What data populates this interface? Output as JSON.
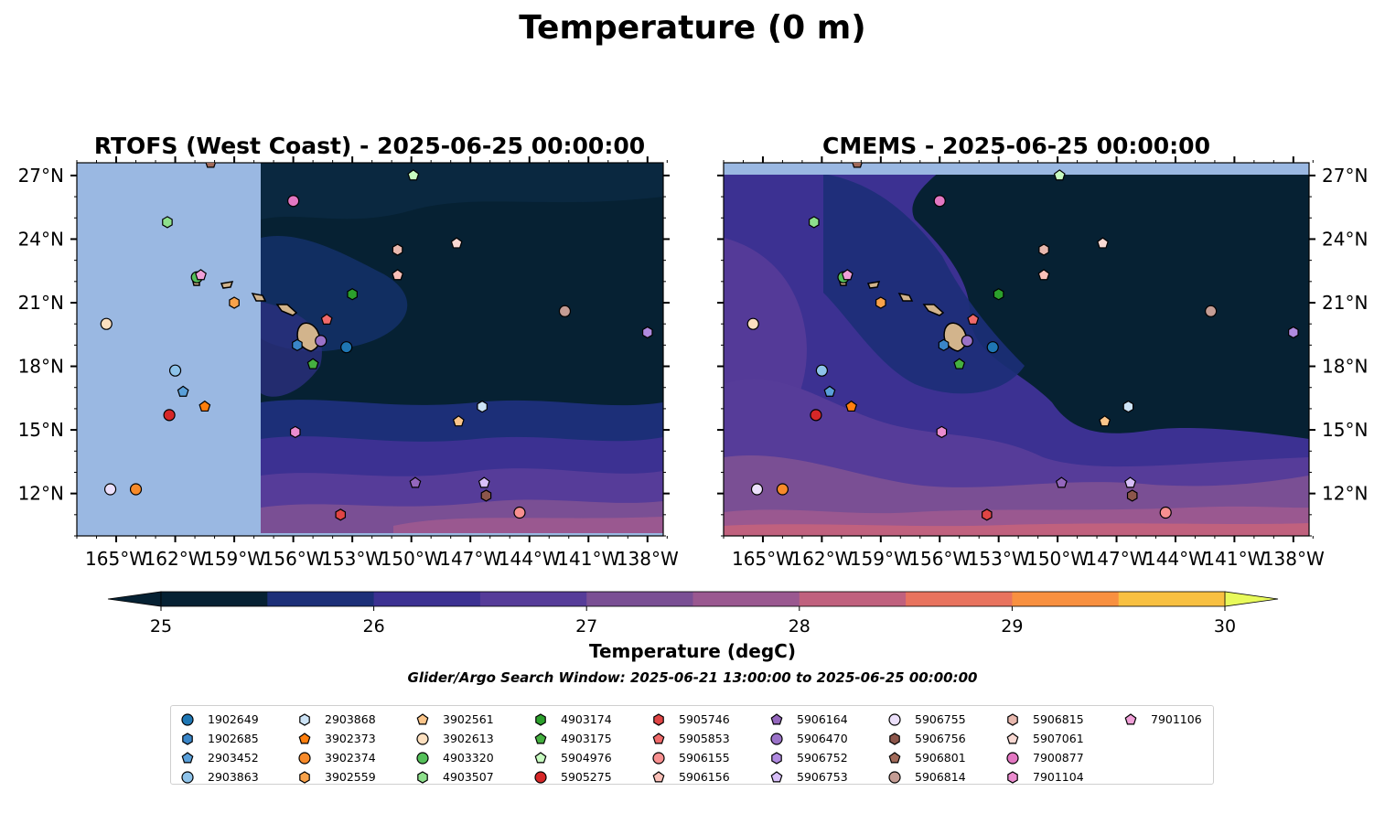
{
  "figure": {
    "suptitle": "Temperature (0 m)",
    "colorbar_label": "Temperature (degC)",
    "search_window": "Glider/Argo Search Window: 2025-06-21 13:00:00 to 2025-06-25 00:00:00"
  },
  "colors": {
    "land": "#d2b48c",
    "no_data": "#9ab8e2",
    "levels": [
      "#062133",
      "#1c2f78",
      "#3c3192",
      "#563c99",
      "#7a4f94",
      "#9a5890",
      "#c0617e",
      "#e8735e",
      "#f89040",
      "#f8c041",
      "#e8fa5b"
    ]
  },
  "chart_data": [
    {
      "type": "heatmap",
      "title": "RTOFS (West Coast) - 2025-06-25 00:00:00",
      "xlim": [
        -167,
        -137.2
      ],
      "ylim": [
        10,
        27.6
      ],
      "x_ticks": [
        "165°W",
        "162°W",
        "159°W",
        "156°W",
        "153°W",
        "150°W",
        "147°W",
        "144°W",
        "141°W",
        "138°W"
      ],
      "y_ticks": [
        "12°N",
        "15°N",
        "18°N",
        "21°N",
        "24°N",
        "27°N"
      ],
      "y_tick_side": "left",
      "no_data_west_of_lon": -157.6
    },
    {
      "type": "heatmap",
      "title": "CMEMS - 2025-06-25 00:00:00",
      "xlim": [
        -167,
        -137.2
      ],
      "ylim": [
        10,
        27.6
      ],
      "x_ticks": [
        "165°W",
        "162°W",
        "159°W",
        "156°W",
        "153°W",
        "150°W",
        "147°W",
        "144°W",
        "141°W",
        "138°W"
      ],
      "y_ticks": [
        "12°N",
        "15°N",
        "18°N",
        "21°N",
        "24°N",
        "27°N"
      ],
      "y_tick_side": "right",
      "no_data_north_of_lat": 27.1
    },
    {
      "type": "colorbar",
      "levels": [
        24.5,
        25,
        25.5,
        26,
        26.5,
        27,
        27.5,
        28,
        28.5,
        29,
        29.5,
        30,
        30.5
      ],
      "tick_labels": [
        "25",
        "26",
        "27",
        "28",
        "29",
        "30"
      ],
      "extend": "both",
      "label": "Temperature (degC)"
    }
  ],
  "floats": [
    {
      "id": "1902649",
      "lon": -153.3,
      "lat": 18.9,
      "color": "#1f77b4",
      "marker": "circle"
    },
    {
      "id": "1902685",
      "lon": -155.8,
      "lat": 19.0,
      "color": "#3a86c8",
      "marker": "hexagon"
    },
    {
      "id": "2903452",
      "lon": -161.6,
      "lat": 16.8,
      "color": "#5aa0da",
      "marker": "pentagon"
    },
    {
      "id": "2903863",
      "lon": -162.0,
      "lat": 17.8,
      "color": "#8ec3ea",
      "marker": "circle"
    },
    {
      "id": "2903868",
      "lon": -146.4,
      "lat": 16.1,
      "color": "#cce3f6",
      "marker": "hexagon"
    },
    {
      "id": "3902373",
      "lon": -160.5,
      "lat": 16.1,
      "color": "#ff7f0e",
      "marker": "pentagon"
    },
    {
      "id": "3902374",
      "lon": -164.0,
      "lat": 12.2,
      "color": "#f78a2a",
      "marker": "circle"
    },
    {
      "id": "3902559",
      "lon": -159.0,
      "lat": 21.0,
      "color": "#f9a24a",
      "marker": "hexagon"
    },
    {
      "id": "3902561",
      "lon": -147.6,
      "lat": 15.4,
      "color": "#fbc58a",
      "marker": "pentagon"
    },
    {
      "id": "3902613",
      "lon": -165.5,
      "lat": 20.0,
      "color": "#fde0c0",
      "marker": "circle"
    },
    {
      "id": "4903320",
      "lon": -160.9,
      "lat": 22.2,
      "color": "#55c05a",
      "marker": "circle"
    },
    {
      "id": "4903507",
      "lon": -162.4,
      "lat": 24.8,
      "color": "#8ee08c",
      "marker": "hexagon"
    },
    {
      "id": "4903174",
      "lon": -153.0,
      "lat": 21.4,
      "color": "#2ca02c",
      "marker": "hexagon"
    },
    {
      "id": "4903175",
      "lon": -155.0,
      "lat": 18.1,
      "color": "#45b040",
      "marker": "pentagon"
    },
    {
      "id": "5904976",
      "lon": -149.9,
      "lat": 27.0,
      "color": "#c7fbc0",
      "marker": "pentagon"
    },
    {
      "id": "5905275",
      "lon": -162.3,
      "lat": 15.7,
      "color": "#d62728",
      "marker": "circle"
    },
    {
      "id": "5905746",
      "lon": -153.6,
      "lat": 11.0,
      "color": "#e04545",
      "marker": "hexagon"
    },
    {
      "id": "5905853",
      "lon": -154.3,
      "lat": 20.2,
      "color": "#f06a6a",
      "marker": "pentagon"
    },
    {
      "id": "5906155",
      "lon": -144.5,
      "lat": 11.1,
      "color": "#f89090",
      "marker": "circle"
    },
    {
      "id": "5906156",
      "lon": -150.7,
      "lat": 22.3,
      "color": "#fbc0b8",
      "marker": "pentagon"
    },
    {
      "id": "5906164",
      "lon": -149.8,
      "lat": 12.5,
      "color": "#9467bd",
      "marker": "pentagon"
    },
    {
      "id": "5906470",
      "lon": -154.6,
      "lat": 19.2,
      "color": "#9a72c8",
      "marker": "circle"
    },
    {
      "id": "5906752",
      "lon": -138.0,
      "lat": 19.6,
      "color": "#b08ae0",
      "marker": "hexagon"
    },
    {
      "id": "5906753",
      "lon": -146.3,
      "lat": 12.5,
      "color": "#d8bff8",
      "marker": "pentagon"
    },
    {
      "id": "5906755",
      "lon": -165.3,
      "lat": 12.2,
      "color": "#ece0fb",
      "marker": "circle"
    },
    {
      "id": "5906756",
      "lon": -146.2,
      "lat": 11.9,
      "color": "#8c564b",
      "marker": "hexagon"
    },
    {
      "id": "5906801",
      "lon": -160.2,
      "lat": 27.6,
      "color": "#a16a5a",
      "marker": "pentagon"
    },
    {
      "id": "5906814",
      "lon": -142.2,
      "lat": 20.6,
      "color": "#c49c94",
      "marker": "circle"
    },
    {
      "id": "5906815",
      "lon": -150.7,
      "lat": 23.5,
      "color": "#e8b8ae",
      "marker": "hexagon"
    },
    {
      "id": "5907061",
      "lon": -147.7,
      "lat": 23.8,
      "color": "#f9d9d3",
      "marker": "pentagon"
    },
    {
      "id": "7900877",
      "lon": -156.0,
      "lat": 25.8,
      "color": "#e377c2",
      "marker": "circle"
    },
    {
      "id": "7901104",
      "lon": -155.9,
      "lat": 14.9,
      "color": "#eb8ccf",
      "marker": "hexagon"
    },
    {
      "id": "7901106",
      "lon": -160.7,
      "lat": 22.3,
      "color": "#f0a0d8",
      "marker": "pentagon"
    }
  ]
}
